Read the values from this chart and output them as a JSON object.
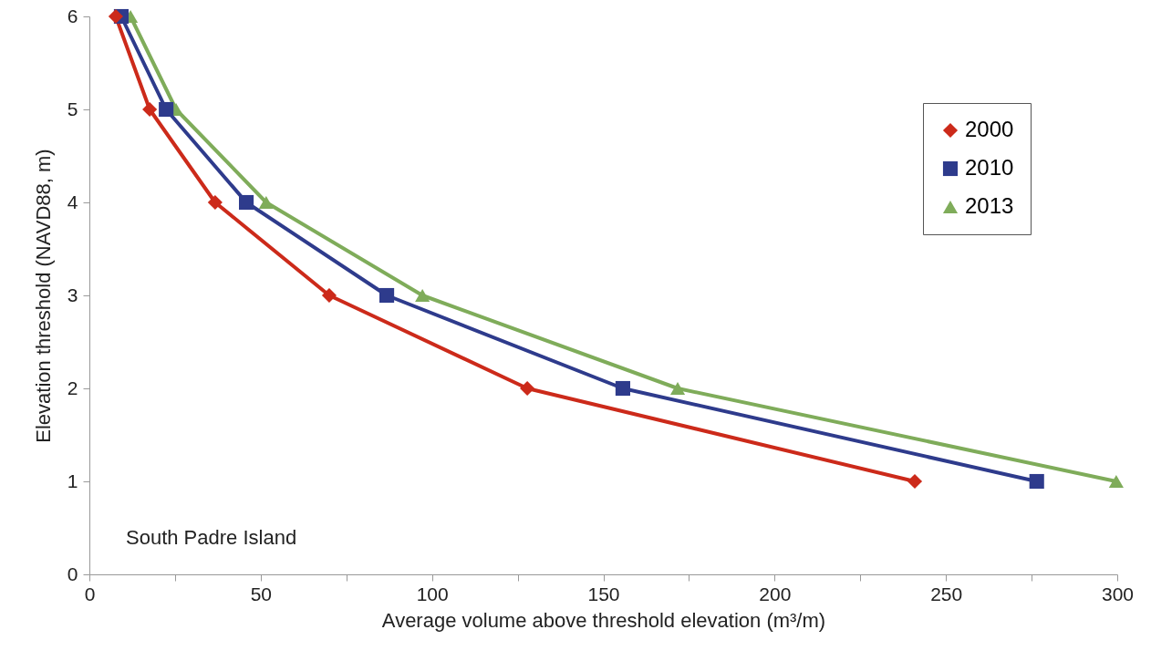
{
  "chart_data": {
    "type": "line",
    "xlabel": "Average volume above threshold elevation (m³/m)",
    "ylabel": "Elevation threshold (NAVD88, m)",
    "xlim": [
      0,
      300
    ],
    "xticks": [
      0,
      {
        "value": 25,
        "label": null
      },
      50,
      {
        "value": 75,
        "label": null
      },
      100,
      {
        "value": 125,
        "label": null
      },
      150,
      {
        "value": 175,
        "label": null
      },
      200,
      {
        "value": 225,
        "label": null
      },
      250,
      {
        "value": 275,
        "label": null
      },
      300
    ],
    "ylim": [
      0,
      6
    ],
    "yticks": [
      0,
      1,
      2,
      3,
      4,
      5,
      6
    ],
    "grid": false,
    "legend": "top right",
    "line_style": "solid",
    "annotations": [
      "South Padre Island"
    ],
    "series": [
      {
        "name": "2000",
        "color": "#cc2a1a",
        "marker": "diamond",
        "x": [
          7.7,
          17.6,
          36.7,
          70,
          127.8,
          240.9
        ],
        "values": [
          6,
          5,
          4,
          3,
          2,
          1
        ]
      },
      {
        "name": "2010",
        "color": "#2e3b8c",
        "marker": "square",
        "x": [
          9.3,
          22.4,
          45.8,
          86.8,
          155.7,
          276.5
        ],
        "values": [
          6,
          5,
          4,
          3,
          2,
          1
        ]
      },
      {
        "name": "2013",
        "color": "#7fac5a",
        "marker": "triangle",
        "x": [
          12,
          25.3,
          51.6,
          97.2,
          171.7,
          299.7
        ],
        "values": [
          6,
          5,
          4,
          3,
          2,
          1
        ]
      }
    ]
  }
}
